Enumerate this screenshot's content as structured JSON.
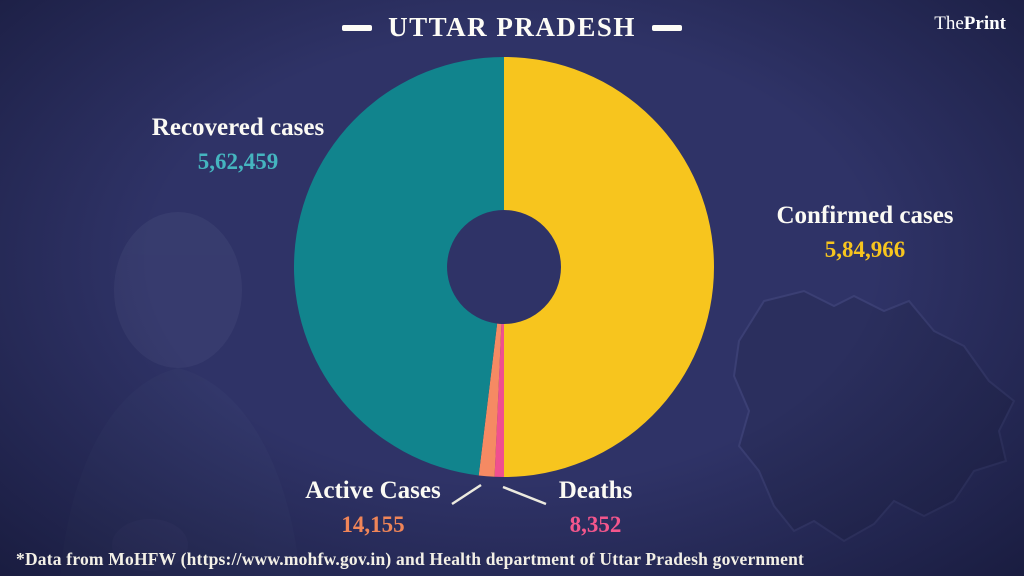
{
  "brand": {
    "part1": "The",
    "part2": "Print"
  },
  "header": {
    "title": "UTTAR PRADESH"
  },
  "chart_data": {
    "type": "pie",
    "variant": "donut",
    "title": "UTTAR PRADESH",
    "start_angle_deg": 0,
    "direction": "clockwise",
    "total": 1169932,
    "legend_position": "callouts-around-donut",
    "grid": false,
    "segments": [
      {
        "label": "Confirmed cases",
        "value": 584966,
        "display_value": "5,84,966",
        "color": "#f7c51e",
        "value_color": "#f7c51e"
      },
      {
        "label": "Deaths",
        "value": 8352,
        "display_value": "8,352",
        "color": "#f0508f",
        "value_color": "#f4568c"
      },
      {
        "label": "Active Cases",
        "value": 14155,
        "display_value": "14,155",
        "color": "#f58a63",
        "value_color": "#f08558"
      },
      {
        "label": "Recovered cases",
        "value": 562459,
        "display_value": "5,62,459",
        "color": "#11848d",
        "value_color": "#45b5bf"
      }
    ]
  },
  "footer": {
    "note": "*Data from MoHFW (https://www.mohfw.gov.in) and Health department of Uttar Pradesh government"
  }
}
